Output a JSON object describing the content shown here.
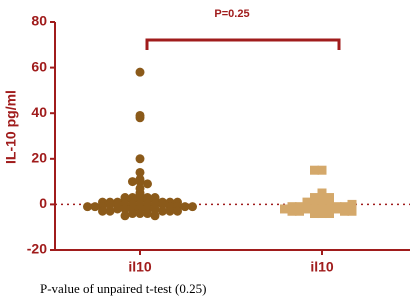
{
  "chart_data": {
    "type": "strip",
    "y_label": "IL-10 pg/ml",
    "annotation": "P=0.25",
    "caption": "P-value of unpaired t-test (0.25)",
    "categories": [
      "il10",
      "il10"
    ],
    "ylim": [
      -20,
      80
    ],
    "yticks": [
      -20,
      0,
      20,
      40,
      60,
      80
    ],
    "reference_line": 0,
    "axis_color": "#a01c1c",
    "series": [
      {
        "color": "#8b5a1a",
        "marker": "circle",
        "values": [
          58,
          39,
          38,
          20,
          14,
          11,
          10,
          10,
          9,
          7,
          5,
          4,
          3,
          3,
          3,
          3,
          2,
          2,
          2,
          2,
          2,
          1,
          1,
          1,
          1,
          1,
          1,
          0,
          0,
          0,
          0,
          0,
          0,
          0,
          0,
          -1,
          -1,
          -1,
          -1,
          -1,
          -1,
          -1,
          -2,
          -2,
          -2,
          -2,
          -2,
          -2,
          -3,
          -3,
          -3,
          -3,
          -3,
          -4,
          -4,
          -4,
          -5,
          -5
        ]
      },
      {
        "color": "#d4a86a",
        "marker": "square",
        "values": [
          15,
          15,
          5,
          4,
          3,
          3,
          2,
          2,
          1,
          1,
          0,
          0,
          0,
          -1,
          -1,
          -1,
          -1,
          -2,
          -2,
          -2,
          -2,
          -2,
          -3,
          -3,
          -3,
          -3,
          -4,
          -4,
          -4,
          -2,
          -1,
          0
        ]
      }
    ]
  }
}
